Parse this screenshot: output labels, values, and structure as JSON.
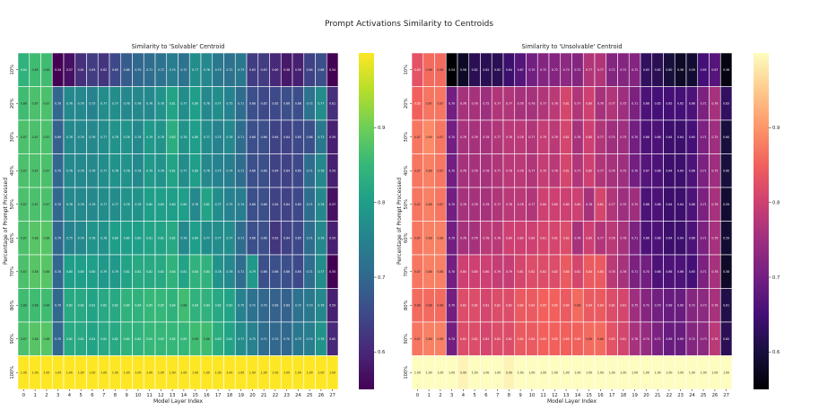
{
  "suptitle": "Prompt Activations Similarity to Centroids",
  "colors": {
    "background": "#ffffff",
    "cell_border": "#ffffff",
    "viridis": [
      "#440154",
      "#482878",
      "#3e4989",
      "#31688e",
      "#26828e",
      "#1f9e89",
      "#35b779",
      "#6ece58",
      "#b5de2b",
      "#fde725"
    ],
    "magma": [
      "#000004",
      "#180f3d",
      "#440f76",
      "#721f81",
      "#9e2f7f",
      "#cd4071",
      "#f1605d",
      "#fd9668",
      "#feca8d",
      "#fcfdbf"
    ]
  },
  "chart_data": [
    {
      "type": "heatmap",
      "title": "Similarity to 'Solvable' Centroid",
      "xlabel": "Model Layer Index",
      "ylabel": "Percentage of Prompt Processed",
      "x_categories": [
        "0",
        "1",
        "2",
        "3",
        "4",
        "5",
        "6",
        "7",
        "8",
        "9",
        "10",
        "11",
        "12",
        "13",
        "14",
        "15",
        "16",
        "17",
        "18",
        "19",
        "20",
        "21",
        "22",
        "23",
        "24",
        "25",
        "26",
        "27"
      ],
      "y_categories": [
        "10%",
        "20%",
        "30%",
        "40%",
        "50%",
        "60%",
        "70%",
        "80%",
        "90%",
        "100%"
      ],
      "colormap": "viridis",
      "vmin": 0.55,
      "vmax": 1.0,
      "colorbar_ticks": [
        0.6,
        0.7,
        0.8,
        0.9
      ],
      "colorbar_tick_labels": [
        "0.6",
        "0.7",
        "0.8",
        "0.9"
      ],
      "values": [
        [
          0.84,
          0.86,
          0.86,
          0.54,
          0.57,
          0.61,
          0.63,
          0.62,
          0.65,
          0.68,
          0.7,
          0.71,
          0.72,
          0.74,
          0.72,
          0.77,
          0.76,
          0.73,
          0.72,
          0.73,
          0.63,
          0.63,
          0.6,
          0.58,
          0.59,
          0.64,
          0.66,
          0.54
        ],
        [
          0.86,
          0.87,
          0.87,
          0.7,
          0.76,
          0.76,
          0.75,
          0.77,
          0.77,
          0.76,
          0.76,
          0.76,
          0.78,
          0.81,
          0.77,
          0.8,
          0.76,
          0.77,
          0.75,
          0.71,
          0.66,
          0.65,
          0.65,
          0.66,
          0.66,
          0.72,
          0.77,
          0.61
        ],
        [
          0.87,
          0.87,
          0.87,
          0.69,
          0.76,
          0.76,
          0.76,
          0.77,
          0.78,
          0.78,
          0.76,
          0.79,
          0.78,
          0.83,
          0.78,
          0.8,
          0.77,
          0.75,
          0.76,
          0.71,
          0.66,
          0.66,
          0.64,
          0.64,
          0.65,
          0.66,
          0.73,
          0.59
        ],
        [
          0.87,
          0.87,
          0.87,
          0.7,
          0.76,
          0.76,
          0.76,
          0.77,
          0.78,
          0.78,
          0.76,
          0.79,
          0.78,
          0.81,
          0.77,
          0.8,
          0.76,
          0.75,
          0.74,
          0.71,
          0.66,
          0.66,
          0.64,
          0.64,
          0.65,
          0.71,
          0.76,
          0.59
        ],
        [
          0.87,
          0.87,
          0.87,
          0.7,
          0.76,
          0.76,
          0.76,
          0.77,
          0.77,
          0.78,
          0.78,
          0.8,
          0.8,
          0.8,
          0.8,
          0.76,
          0.81,
          0.77,
          0.75,
          0.74,
          0.66,
          0.66,
          0.64,
          0.64,
          0.65,
          0.71,
          0.76,
          0.57
        ],
        [
          0.87,
          0.88,
          0.88,
          0.7,
          0.75,
          0.76,
          0.78,
          0.78,
          0.8,
          0.8,
          0.8,
          0.81,
          0.81,
          0.82,
          0.76,
          0.8,
          0.77,
          0.77,
          0.77,
          0.71,
          0.66,
          0.66,
          0.62,
          0.64,
          0.65,
          0.71,
          0.76,
          0.59
        ],
        [
          0.87,
          0.88,
          0.88,
          0.7,
          0.8,
          0.8,
          0.8,
          0.79,
          0.79,
          0.81,
          0.82,
          0.82,
          0.82,
          0.84,
          0.81,
          0.84,
          0.84,
          0.78,
          0.76,
          0.71,
          0.79,
          0.66,
          0.66,
          0.66,
          0.65,
          0.71,
          0.77,
          0.55
        ],
        [
          0.86,
          0.86,
          0.86,
          0.7,
          0.82,
          0.82,
          0.81,
          0.82,
          0.82,
          0.84,
          0.84,
          0.85,
          0.85,
          0.84,
          0.86,
          0.84,
          0.84,
          0.82,
          0.81,
          0.75,
          0.72,
          0.7,
          0.69,
          0.69,
          0.72,
          0.73,
          0.76,
          0.59
        ],
        [
          0.87,
          0.88,
          0.88,
          0.7,
          0.82,
          0.82,
          0.81,
          0.82,
          0.82,
          0.84,
          0.84,
          0.85,
          0.85,
          0.85,
          0.85,
          0.86,
          0.86,
          0.83,
          0.81,
          0.77,
          0.75,
          0.71,
          0.7,
          0.7,
          0.73,
          0.74,
          0.78,
          0.6
        ],
        [
          1.0,
          1.0,
          1.0,
          1.0,
          1.0,
          1.0,
          1.0,
          1.0,
          1.0,
          1.0,
          1.0,
          1.0,
          1.0,
          1.0,
          1.0,
          1.0,
          1.0,
          1.0,
          1.0,
          1.0,
          1.0,
          1.0,
          1.0,
          1.0,
          1.0,
          1.0,
          1.0,
          1.0
        ]
      ]
    },
    {
      "type": "heatmap",
      "title": "Similarity to 'Unsolvable' Centroid",
      "xlabel": "Model Layer Index",
      "ylabel": "Percentage of Prompt Processed",
      "x_categories": [
        "0",
        "1",
        "2",
        "3",
        "4",
        "5",
        "6",
        "7",
        "8",
        "9",
        "10",
        "11",
        "12",
        "13",
        "14",
        "15",
        "16",
        "17",
        "18",
        "19",
        "20",
        "21",
        "22",
        "23",
        "24",
        "25",
        "26",
        "27"
      ],
      "y_categories": [
        "10%",
        "20%",
        "30%",
        "40%",
        "50%",
        "60%",
        "70%",
        "80%",
        "90%",
        "100%"
      ],
      "colormap": "magma",
      "vmin": 0.55,
      "vmax": 1.0,
      "colorbar_ticks": [
        0.6,
        0.7,
        0.8,
        0.9
      ],
      "colorbar_tick_labels": [
        "0.6",
        "0.7",
        "0.8",
        "0.9"
      ],
      "values": [
        [
          0.83,
          0.86,
          0.86,
          0.54,
          0.58,
          0.62,
          0.62,
          0.62,
          0.64,
          0.67,
          0.7,
          0.72,
          0.72,
          0.73,
          0.72,
          0.77,
          0.77,
          0.72,
          0.72,
          0.72,
          0.63,
          0.62,
          0.6,
          0.58,
          0.59,
          0.65,
          0.67,
          0.56
        ],
        [
          0.85,
          0.87,
          0.87,
          0.7,
          0.76,
          0.76,
          0.75,
          0.77,
          0.77,
          0.76,
          0.76,
          0.77,
          0.78,
          0.81,
          0.77,
          0.8,
          0.76,
          0.77,
          0.75,
          0.71,
          0.66,
          0.65,
          0.65,
          0.65,
          0.66,
          0.71,
          0.76,
          0.63
        ],
        [
          0.87,
          0.89,
          0.87,
          0.7,
          0.76,
          0.76,
          0.76,
          0.77,
          0.78,
          0.78,
          0.77,
          0.79,
          0.78,
          0.81,
          0.76,
          0.8,
          0.77,
          0.75,
          0.75,
          0.7,
          0.66,
          0.66,
          0.64,
          0.64,
          0.65,
          0.71,
          0.75,
          0.6
        ],
        [
          0.87,
          0.88,
          0.87,
          0.7,
          0.76,
          0.76,
          0.76,
          0.77,
          0.78,
          0.78,
          0.77,
          0.79,
          0.78,
          0.81,
          0.77,
          0.8,
          0.77,
          0.76,
          0.75,
          0.7,
          0.67,
          0.66,
          0.64,
          0.64,
          0.66,
          0.71,
          0.75,
          0.6
        ],
        [
          0.87,
          0.88,
          0.87,
          0.7,
          0.76,
          0.76,
          0.76,
          0.77,
          0.78,
          0.78,
          0.77,
          0.8,
          0.8,
          0.8,
          0.8,
          0.76,
          0.81,
          0.77,
          0.75,
          0.75,
          0.66,
          0.66,
          0.64,
          0.64,
          0.66,
          0.71,
          0.76,
          0.59
        ],
        [
          0.87,
          0.88,
          0.88,
          0.7,
          0.76,
          0.76,
          0.78,
          0.78,
          0.8,
          0.8,
          0.8,
          0.81,
          0.81,
          0.82,
          0.76,
          0.8,
          0.77,
          0.78,
          0.76,
          0.71,
          0.66,
          0.66,
          0.64,
          0.64,
          0.66,
          0.71,
          0.76,
          0.59
        ],
        [
          0.87,
          0.88,
          0.88,
          0.7,
          0.8,
          0.8,
          0.8,
          0.79,
          0.79,
          0.81,
          0.82,
          0.82,
          0.82,
          0.84,
          0.81,
          0.84,
          0.84,
          0.78,
          0.76,
          0.71,
          0.7,
          0.66,
          0.66,
          0.66,
          0.65,
          0.71,
          0.76,
          0.58
        ],
        [
          0.86,
          0.86,
          0.86,
          0.7,
          0.82,
          0.82,
          0.81,
          0.82,
          0.82,
          0.84,
          0.84,
          0.85,
          0.85,
          0.84,
          0.86,
          0.84,
          0.84,
          0.82,
          0.81,
          0.75,
          0.72,
          0.7,
          0.69,
          0.69,
          0.72,
          0.73,
          0.76,
          0.61
        ],
        [
          0.87,
          0.88,
          0.88,
          0.7,
          0.82,
          0.82,
          0.81,
          0.82,
          0.82,
          0.84,
          0.84,
          0.85,
          0.85,
          0.85,
          0.85,
          0.86,
          0.86,
          0.83,
          0.81,
          0.76,
          0.74,
          0.71,
          0.69,
          0.69,
          0.72,
          0.73,
          0.78,
          0.62
        ],
        [
          1.0,
          1.0,
          1.0,
          1.0,
          0.99,
          1.0,
          1.0,
          1.0,
          0.99,
          1.0,
          1.0,
          1.0,
          1.0,
          1.0,
          1.0,
          1.0,
          1.0,
          1.0,
          1.0,
          1.0,
          1.0,
          1.0,
          1.0,
          1.0,
          1.0,
          1.0,
          1.0,
          1.0
        ]
      ]
    }
  ]
}
